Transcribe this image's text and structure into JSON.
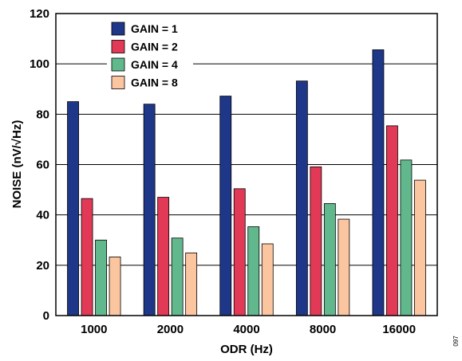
{
  "chart_data": {
    "type": "bar",
    "categories": [
      "1000",
      "2000",
      "4000",
      "8000",
      "16000"
    ],
    "series": [
      {
        "name": "GAIN = 1",
        "color": "#1f3788",
        "values": [
          85.0,
          84.0,
          87.2,
          93.2,
          105.6
        ]
      },
      {
        "name": "GAIN = 2",
        "color": "#e23956",
        "values": [
          46.5,
          47.0,
          50.4,
          59.1,
          75.4
        ]
      },
      {
        "name": "GAIN = 4",
        "color": "#62b88d",
        "values": [
          30.0,
          30.8,
          35.3,
          44.5,
          61.8
        ]
      },
      {
        "name": "GAIN = 8",
        "color": "#fbc5a0",
        "values": [
          23.3,
          24.9,
          28.5,
          38.3,
          53.8
        ]
      }
    ],
    "xlabel": "ODR (Hz)",
    "ylabel": "NOISE (nV/√Hz)",
    "ylim": [
      0,
      120
    ],
    "yticks": [
      0,
      20,
      40,
      60,
      80,
      100,
      120
    ],
    "grid": "horizontal",
    "legend_position": "top-left"
  },
  "figure_code": "097"
}
